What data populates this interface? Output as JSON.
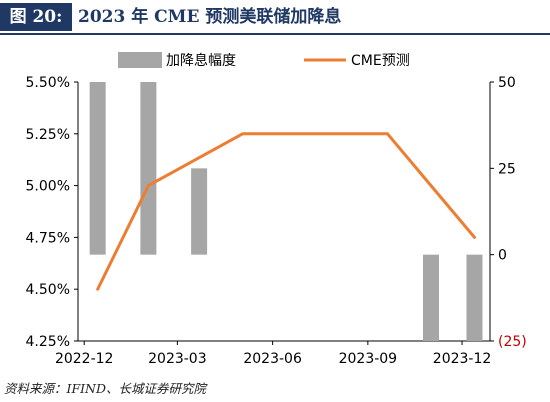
{
  "figure": {
    "label": "图 20:",
    "title": "2023 年 CME 预测美联储加降息"
  },
  "source": "资料来源：IFIND、长城证券研究院",
  "colors": {
    "header_bg": "#1f3864",
    "bar": "#a6a6a6",
    "line": "#ed7d31",
    "negative_tick": "#c00000"
  },
  "chart_data": {
    "type": "bar+line",
    "x_ticks": [
      "2022-12",
      "2023-03",
      "2023-06",
      "2023-09",
      "2023-12"
    ],
    "legend": [
      "加降息幅度",
      "CME预测"
    ],
    "legend_position": "top",
    "left_axis": {
      "ticks": [
        "4.25%",
        "4.50%",
        "4.75%",
        "5.00%",
        "5.25%",
        "5.50%"
      ],
      "ylim": [
        4.25,
        5.5
      ]
    },
    "right_axis": {
      "ticks": [
        "(25)",
        "0",
        "25",
        "50"
      ],
      "ylim": [
        -25,
        50
      ]
    },
    "series": [
      {
        "name": "加降息幅度",
        "type": "bar",
        "axis": "right",
        "points": [
          {
            "date": "2022-12-14",
            "value": 50
          },
          {
            "date": "2023-02-01",
            "value": 50
          },
          {
            "date": "2023-03-22",
            "value": 25
          },
          {
            "date": "2023-11-01",
            "value": -25
          },
          {
            "date": "2023-12-13",
            "value": -25
          }
        ]
      },
      {
        "name": "CME预测",
        "type": "line",
        "axis": "left",
        "points": [
          {
            "date": "2022-12-14",
            "value": 4.5
          },
          {
            "date": "2023-02-01",
            "value": 5.0
          },
          {
            "date": "2023-05-03",
            "value": 5.25
          },
          {
            "date": "2023-09-20",
            "value": 5.25
          },
          {
            "date": "2023-11-01",
            "value": 5.0
          },
          {
            "date": "2023-12-13",
            "value": 4.75
          }
        ]
      }
    ]
  }
}
